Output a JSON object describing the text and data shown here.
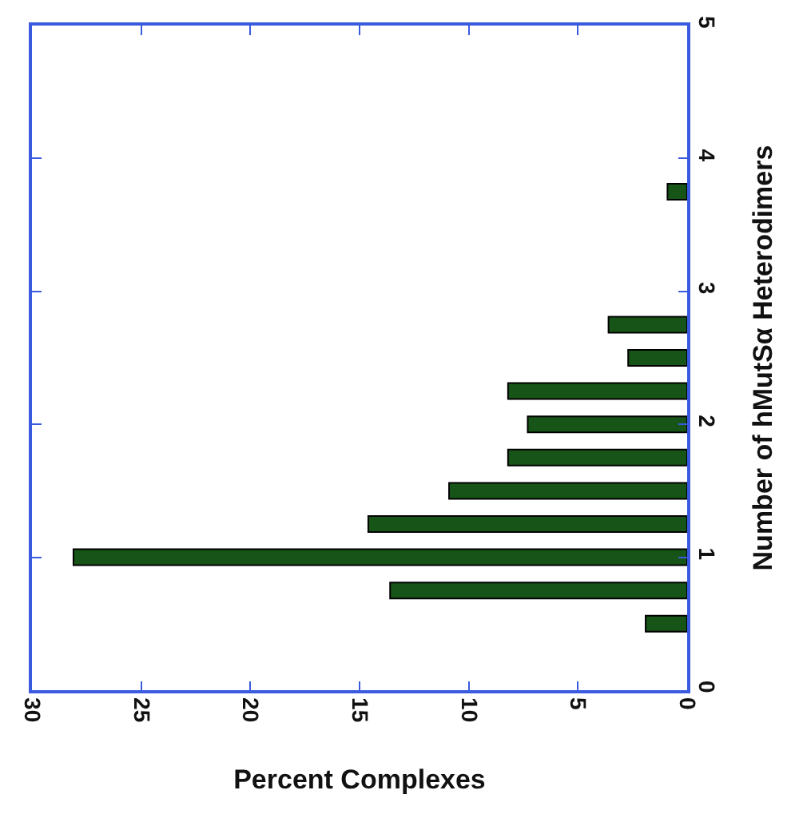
{
  "chart_data": {
    "type": "bar",
    "orientation": "horizontal",
    "xlabel": "Percent Complexes",
    "ylabel": "Number of hMutSα Heterodimers",
    "x": [
      0.5,
      0.75,
      1.0,
      1.25,
      1.5,
      1.75,
      2.0,
      2.25,
      2.5,
      2.75,
      3.75
    ],
    "values": [
      1.9,
      13.6,
      28.1,
      14.6,
      10.9,
      8.2,
      7.3,
      8.2,
      2.7,
      3.6,
      0.9
    ],
    "color": "#175417",
    "xlim": [
      30,
      0
    ],
    "xticks": [
      30,
      25,
      20,
      15,
      10,
      5,
      0
    ],
    "ylim": [
      0,
      5
    ],
    "yticks": [
      0,
      1,
      2,
      3,
      4,
      5
    ],
    "grid": false,
    "legend": false
  }
}
